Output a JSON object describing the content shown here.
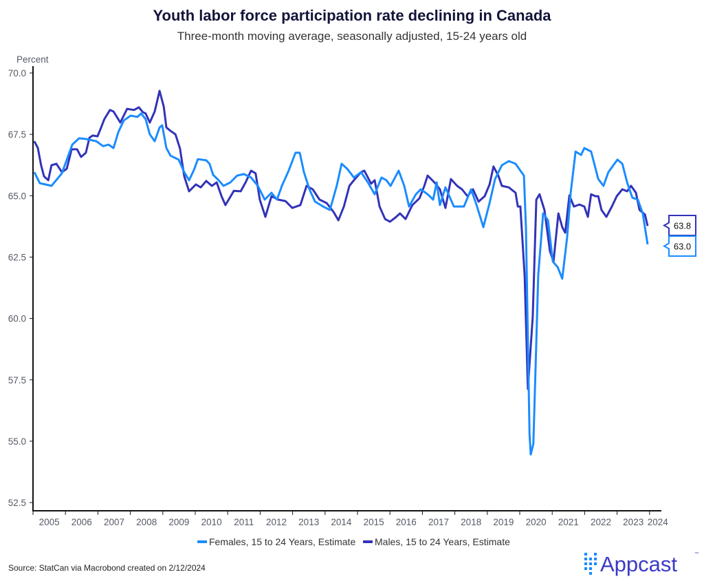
{
  "chart_data": {
    "type": "line",
    "title": "Youth labor force participation rate declining in Canada",
    "subtitle": "Three-month moving average, seasonally adjusted, 15-24 years old",
    "ylabel": "Percent",
    "xlabel": "",
    "ylim": [
      52.5,
      70.0
    ],
    "xlim": [
      2005,
      2024.4
    ],
    "yticks": [
      "70.0",
      "67.5",
      "65.0",
      "62.5",
      "60.0",
      "57.5",
      "55.0",
      "52.5"
    ],
    "ytick_values": [
      70.0,
      67.5,
      65.0,
      62.5,
      60.0,
      57.5,
      55.0,
      52.5
    ],
    "xticks": [
      "2005",
      "2006",
      "2007",
      "2008",
      "2009",
      "2010",
      "2011",
      "2012",
      "2013",
      "2014",
      "2015",
      "2016",
      "2017",
      "2018",
      "2019",
      "2020",
      "2021",
      "2022",
      "2023",
      "2024"
    ],
    "grid": false,
    "legend_position": "bottom-center",
    "series": [
      {
        "name": "Females, 15 to 24 Years, Estimate",
        "color": "#1a8cff",
        "last_value_label": "63.0",
        "points": [
          [
            2005.04,
            65.96
          ],
          [
            2005.21,
            65.51
          ],
          [
            2005.38,
            65.46
          ],
          [
            2005.57,
            65.4
          ],
          [
            2005.89,
            65.91
          ],
          [
            2006.21,
            67.08
          ],
          [
            2006.42,
            67.34
          ],
          [
            2006.63,
            67.31
          ],
          [
            2006.95,
            67.22
          ],
          [
            2007.16,
            67.02
          ],
          [
            2007.33,
            67.08
          ],
          [
            2007.48,
            66.94
          ],
          [
            2007.63,
            67.59
          ],
          [
            2007.8,
            68.07
          ],
          [
            2008.01,
            68.26
          ],
          [
            2008.22,
            68.21
          ],
          [
            2008.33,
            68.35
          ],
          [
            2008.47,
            68.12
          ],
          [
            2008.6,
            67.5
          ],
          [
            2008.75,
            67.22
          ],
          [
            2008.9,
            67.78
          ],
          [
            2008.98,
            67.87
          ],
          [
            2009.11,
            66.94
          ],
          [
            2009.24,
            66.63
          ],
          [
            2009.49,
            66.47
          ],
          [
            2009.66,
            65.96
          ],
          [
            2009.81,
            65.63
          ],
          [
            2009.96,
            66.05
          ],
          [
            2010.08,
            66.49
          ],
          [
            2010.34,
            66.44
          ],
          [
            2010.44,
            66.3
          ],
          [
            2010.55,
            65.85
          ],
          [
            2010.72,
            65.63
          ],
          [
            2010.87,
            65.4
          ],
          [
            2011.08,
            65.54
          ],
          [
            2011.29,
            65.82
          ],
          [
            2011.5,
            65.88
          ],
          [
            2011.72,
            65.74
          ],
          [
            2011.93,
            65.4
          ],
          [
            2012.14,
            64.84
          ],
          [
            2012.35,
            65.12
          ],
          [
            2012.52,
            64.84
          ],
          [
            2012.67,
            65.4
          ],
          [
            2012.88,
            66.02
          ],
          [
            2013.09,
            66.75
          ],
          [
            2013.22,
            66.75
          ],
          [
            2013.35,
            65.96
          ],
          [
            2013.52,
            65.26
          ],
          [
            2013.69,
            64.76
          ],
          [
            2013.94,
            64.56
          ],
          [
            2014.15,
            64.42
          ],
          [
            2014.36,
            65.4
          ],
          [
            2014.51,
            66.3
          ],
          [
            2014.68,
            66.1
          ],
          [
            2014.89,
            65.74
          ],
          [
            2015.11,
            65.96
          ],
          [
            2015.32,
            65.54
          ],
          [
            2015.53,
            65.06
          ],
          [
            2015.74,
            65.74
          ],
          [
            2015.89,
            65.63
          ],
          [
            2016.02,
            65.4
          ],
          [
            2016.27,
            66.02
          ],
          [
            2016.44,
            65.4
          ],
          [
            2016.59,
            64.56
          ],
          [
            2016.8,
            65.06
          ],
          [
            2016.95,
            65.26
          ],
          [
            2017.16,
            65.06
          ],
          [
            2017.33,
            64.84
          ],
          [
            2017.44,
            65.54
          ],
          [
            2017.54,
            64.62
          ],
          [
            2017.71,
            65.34
          ],
          [
            2017.97,
            64.56
          ],
          [
            2018.28,
            64.56
          ],
          [
            2018.5,
            65.26
          ],
          [
            2018.67,
            64.62
          ],
          [
            2018.88,
            63.72
          ],
          [
            2019.07,
            64.7
          ],
          [
            2019.24,
            65.68
          ],
          [
            2019.45,
            66.24
          ],
          [
            2019.66,
            66.41
          ],
          [
            2019.87,
            66.3
          ],
          [
            2020.02,
            66.02
          ],
          [
            2020.13,
            65.82
          ],
          [
            2020.19,
            63.72
          ],
          [
            2020.3,
            55.31
          ],
          [
            2020.34,
            54.46
          ],
          [
            2020.42,
            54.89
          ],
          [
            2020.57,
            61.76
          ],
          [
            2020.72,
            64.28
          ],
          [
            2020.87,
            64.0
          ],
          [
            2021.02,
            62.32
          ],
          [
            2021.17,
            62.09
          ],
          [
            2021.31,
            61.62
          ],
          [
            2021.46,
            63.3
          ],
          [
            2021.57,
            65.12
          ],
          [
            2021.72,
            66.8
          ],
          [
            2021.89,
            66.66
          ],
          [
            2021.99,
            66.94
          ],
          [
            2022.2,
            66.8
          ],
          [
            2022.42,
            65.68
          ],
          [
            2022.58,
            65.4
          ],
          [
            2022.73,
            65.96
          ],
          [
            2023.01,
            66.47
          ],
          [
            2023.16,
            66.3
          ],
          [
            2023.31,
            65.54
          ],
          [
            2023.47,
            64.92
          ],
          [
            2023.64,
            64.84
          ],
          [
            2023.79,
            64.28
          ],
          [
            2023.94,
            63.02
          ]
        ]
      },
      {
        "name": "Males, 15 to 24 Years, Estimate",
        "color": "#3232b8",
        "last_value_label": "63.8",
        "points": [
          [
            2005.04,
            67.22
          ],
          [
            2005.15,
            66.94
          ],
          [
            2005.25,
            66.24
          ],
          [
            2005.34,
            65.79
          ],
          [
            2005.47,
            65.63
          ],
          [
            2005.57,
            66.24
          ],
          [
            2005.72,
            66.3
          ],
          [
            2005.89,
            65.96
          ],
          [
            2006.04,
            66.1
          ],
          [
            2006.19,
            66.89
          ],
          [
            2006.36,
            66.89
          ],
          [
            2006.48,
            66.58
          ],
          [
            2006.63,
            66.75
          ],
          [
            2006.74,
            67.36
          ],
          [
            2006.84,
            67.45
          ],
          [
            2006.99,
            67.42
          ],
          [
            2007.1,
            67.78
          ],
          [
            2007.2,
            68.12
          ],
          [
            2007.37,
            68.49
          ],
          [
            2007.48,
            68.43
          ],
          [
            2007.69,
            67.98
          ],
          [
            2007.9,
            68.54
          ],
          [
            2008.11,
            68.49
          ],
          [
            2008.26,
            68.6
          ],
          [
            2008.39,
            68.4
          ],
          [
            2008.47,
            68.35
          ],
          [
            2008.6,
            67.98
          ],
          [
            2008.75,
            68.43
          ],
          [
            2008.9,
            69.27
          ],
          [
            2009.03,
            68.63
          ],
          [
            2009.11,
            67.78
          ],
          [
            2009.24,
            67.64
          ],
          [
            2009.39,
            67.5
          ],
          [
            2009.53,
            66.92
          ],
          [
            2009.66,
            65.79
          ],
          [
            2009.81,
            65.18
          ],
          [
            2010.02,
            65.46
          ],
          [
            2010.17,
            65.34
          ],
          [
            2010.34,
            65.6
          ],
          [
            2010.51,
            65.4
          ],
          [
            2010.66,
            65.54
          ],
          [
            2010.81,
            64.98
          ],
          [
            2010.93,
            64.62
          ],
          [
            2011.19,
            65.2
          ],
          [
            2011.4,
            65.18
          ],
          [
            2011.55,
            65.54
          ],
          [
            2011.72,
            66.02
          ],
          [
            2011.86,
            65.91
          ],
          [
            2011.99,
            64.84
          ],
          [
            2012.16,
            64.14
          ],
          [
            2012.35,
            64.98
          ],
          [
            2012.56,
            64.84
          ],
          [
            2012.78,
            64.78
          ],
          [
            2012.99,
            64.5
          ],
          [
            2013.24,
            64.62
          ],
          [
            2013.43,
            65.4
          ],
          [
            2013.62,
            65.26
          ],
          [
            2013.83,
            64.84
          ],
          [
            2014.05,
            64.7
          ],
          [
            2014.26,
            64.34
          ],
          [
            2014.41,
            64.0
          ],
          [
            2014.58,
            64.56
          ],
          [
            2014.75,
            65.4
          ],
          [
            2014.89,
            65.63
          ],
          [
            2015.11,
            65.96
          ],
          [
            2015.21,
            66.02
          ],
          [
            2015.42,
            65.49
          ],
          [
            2015.53,
            65.63
          ],
          [
            2015.68,
            64.56
          ],
          [
            2015.85,
            64.05
          ],
          [
            2016.0,
            63.94
          ],
          [
            2016.17,
            64.11
          ],
          [
            2016.31,
            64.28
          ],
          [
            2016.48,
            64.05
          ],
          [
            2016.69,
            64.62
          ],
          [
            2016.91,
            64.9
          ],
          [
            2017.06,
            65.4
          ],
          [
            2017.16,
            65.82
          ],
          [
            2017.37,
            65.54
          ],
          [
            2017.54,
            65.26
          ],
          [
            2017.71,
            64.5
          ],
          [
            2017.88,
            65.68
          ],
          [
            2018.07,
            65.4
          ],
          [
            2018.22,
            65.26
          ],
          [
            2018.39,
            64.98
          ],
          [
            2018.56,
            65.26
          ],
          [
            2018.73,
            64.76
          ],
          [
            2018.92,
            64.98
          ],
          [
            2019.07,
            65.46
          ],
          [
            2019.19,
            66.19
          ],
          [
            2019.34,
            65.82
          ],
          [
            2019.45,
            65.4
          ],
          [
            2019.66,
            65.34
          ],
          [
            2019.87,
            65.12
          ],
          [
            2019.94,
            64.56
          ],
          [
            2020.02,
            64.56
          ],
          [
            2020.15,
            61.76
          ],
          [
            2020.25,
            57.13
          ],
          [
            2020.4,
            60.07
          ],
          [
            2020.51,
            64.84
          ],
          [
            2020.61,
            65.06
          ],
          [
            2020.76,
            64.42
          ],
          [
            2020.93,
            62.74
          ],
          [
            2021.04,
            62.32
          ],
          [
            2021.19,
            64.28
          ],
          [
            2021.31,
            63.72
          ],
          [
            2021.4,
            63.49
          ],
          [
            2021.53,
            65.01
          ],
          [
            2021.67,
            64.56
          ],
          [
            2021.84,
            64.64
          ],
          [
            2021.99,
            64.56
          ],
          [
            2022.1,
            64.14
          ],
          [
            2022.2,
            65.06
          ],
          [
            2022.33,
            64.98
          ],
          [
            2022.42,
            64.98
          ],
          [
            2022.52,
            64.42
          ],
          [
            2022.67,
            64.14
          ],
          [
            2022.84,
            64.56
          ],
          [
            2022.99,
            64.98
          ],
          [
            2023.16,
            65.26
          ],
          [
            2023.31,
            65.18
          ],
          [
            2023.43,
            65.4
          ],
          [
            2023.58,
            65.12
          ],
          [
            2023.69,
            64.42
          ],
          [
            2023.86,
            64.23
          ],
          [
            2023.94,
            63.77
          ]
        ]
      }
    ]
  },
  "footer": {
    "source": "Source: StatCan via Macrobond created on 2/12/2024",
    "logo_text": "Appcast",
    "logo_tm": "™"
  }
}
